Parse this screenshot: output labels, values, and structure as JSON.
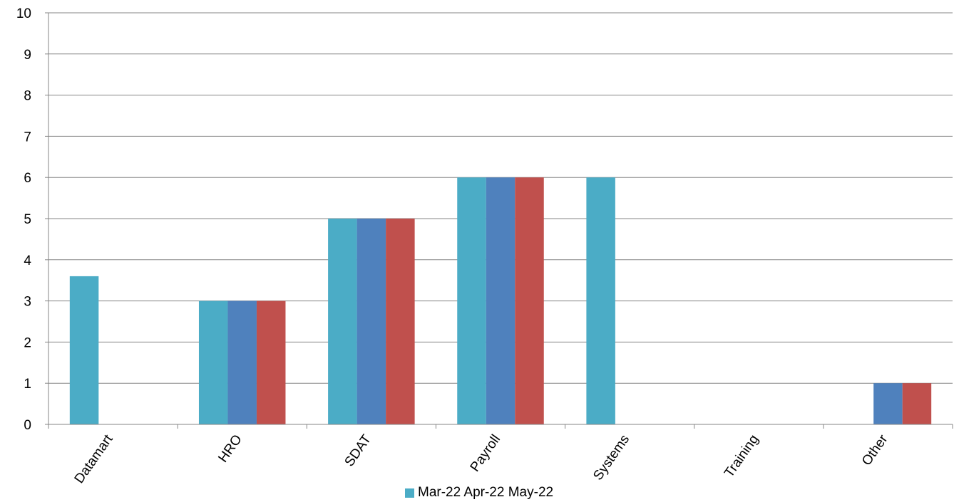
{
  "colors": {
    "series": [
      "#4BACC6",
      "#4F81BD",
      "#C0504D"
    ],
    "grid": "#868686",
    "background": "#ffffff"
  },
  "legend": {
    "text": "Mar-22 Apr-22 May-22"
  },
  "chart_data": {
    "type": "bar",
    "categories": [
      "Datamart",
      "HRO",
      "SDAT",
      "Payroll",
      "Systems",
      "Training",
      "Other"
    ],
    "series": [
      {
        "name": "Mar-22",
        "values": [
          3.6,
          3,
          5,
          6,
          6,
          0,
          0
        ]
      },
      {
        "name": "Apr-22",
        "values": [
          0,
          3,
          5,
          6,
          0,
          0,
          1
        ]
      },
      {
        "name": "May-22",
        "values": [
          0,
          3,
          5,
          6,
          0,
          0,
          1
        ]
      }
    ],
    "yticks": [
      0,
      1,
      2,
      3,
      4,
      5,
      6,
      7,
      8,
      9,
      10
    ],
    "ylim": [
      0,
      10
    ],
    "grid": true,
    "legend_position": "bottom",
    "xlabel_rotation": "-55deg"
  }
}
